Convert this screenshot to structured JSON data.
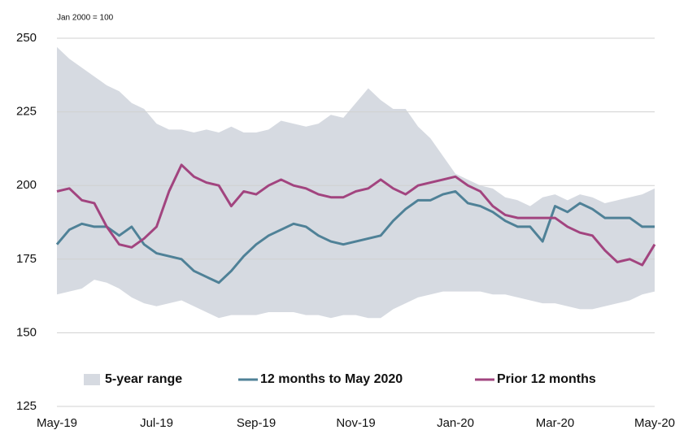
{
  "chart_data": {
    "type": "line",
    "subtitle": "Jan 2000 = 100",
    "categories": [
      "May-19",
      null,
      null,
      null,
      null,
      null,
      null,
      null,
      "Jul-19",
      null,
      null,
      null,
      null,
      null,
      null,
      null,
      "Sep-19",
      null,
      null,
      null,
      null,
      null,
      null,
      null,
      "Nov-19",
      null,
      null,
      null,
      null,
      null,
      null,
      null,
      "Jan-20",
      null,
      null,
      null,
      null,
      null,
      null,
      null,
      "Mar-20",
      null,
      null,
      null,
      null,
      null,
      null,
      null,
      "May-20"
    ],
    "ylim": [
      125,
      250
    ],
    "yticks": [
      125,
      150,
      175,
      200,
      225,
      250
    ],
    "grid": true,
    "series": [
      {
        "name": "5-year range",
        "color": "#d6dae1",
        "type": "range",
        "low": [
          163,
          164,
          165,
          168,
          167,
          165,
          162,
          160,
          159,
          160,
          161,
          159,
          157,
          155,
          156,
          156,
          156,
          157,
          157,
          157,
          156,
          156,
          155,
          156,
          156,
          155,
          155,
          158,
          160,
          162,
          163,
          164,
          164,
          164,
          164,
          163,
          163,
          162,
          161,
          160,
          160,
          159,
          158,
          158,
          159,
          160,
          161,
          163,
          164
        ],
        "high": [
          247,
          243,
          240,
          237,
          234,
          232,
          228,
          226,
          221,
          219,
          219,
          218,
          219,
          218,
          220,
          218,
          218,
          219,
          222,
          221,
          220,
          221,
          224,
          223,
          228,
          233,
          229,
          226,
          226,
          220,
          216,
          210,
          204,
          202,
          200,
          199,
          196,
          195,
          193,
          196,
          197,
          195,
          197,
          196,
          194,
          195,
          196,
          197,
          199
        ]
      },
      {
        "name": "12 months to May 2020",
        "color": "#4f8197",
        "values": [
          180,
          185,
          187,
          186,
          186,
          183,
          186,
          180,
          177,
          176,
          175,
          171,
          169,
          167,
          171,
          176,
          180,
          183,
          185,
          187,
          186,
          183,
          181,
          180,
          181,
          182,
          183,
          188,
          192,
          195,
          195,
          197,
          198,
          194,
          193,
          191,
          188,
          186,
          186,
          181,
          193,
          191,
          194,
          192,
          189,
          189,
          189,
          186,
          186
        ]
      },
      {
        "name": "Prior 12 months",
        "color": "#a2447f",
        "values": [
          198,
          199,
          195,
          194,
          186,
          180,
          179,
          182,
          186,
          198,
          207,
          203,
          201,
          200,
          193,
          198,
          197,
          200,
          202,
          200,
          199,
          197,
          196,
          196,
          198,
          199,
          202,
          199,
          197,
          200,
          201,
          202,
          203,
          200,
          198,
          193,
          190,
          189,
          189,
          189,
          189,
          186,
          184,
          183,
          178,
          174,
          175,
          173,
          180
        ]
      }
    ]
  }
}
